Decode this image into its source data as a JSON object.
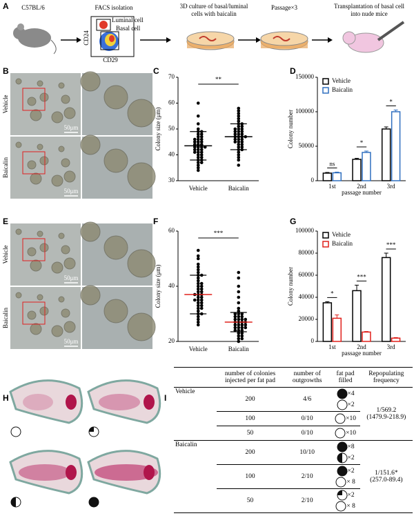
{
  "panel_labels": [
    "A",
    "B",
    "C",
    "D",
    "E",
    "F",
    "G",
    "H",
    "I"
  ],
  "workflow": {
    "mouse": "C57BL/6",
    "facs": "FACS isolation",
    "luminal": "Luminal cell",
    "basal": "Basal cell",
    "axis_y": "CD24",
    "axis_x": "CD29",
    "culture": [
      "3D culture of basal/luminal",
      "cells with baicalin"
    ],
    "passage": "Passage×3",
    "transplant": [
      "Transplantation of basal cell",
      "into nude mice"
    ]
  },
  "micrographs": [
    {
      "rows": [
        "Vehicle",
        "Baicalin"
      ],
      "scale_bars": [
        "50μm",
        "50μm"
      ]
    },
    {
      "rows": [
        "Vehicle",
        "Baicalin"
      ],
      "scale_bars": [
        "50μm",
        "50μm"
      ]
    }
  ],
  "chart_data": [
    {
      "type": "strip",
      "ylabel": "Colony size (μm)",
      "ylim": [
        30,
        70
      ],
      "yticks": [
        30,
        40,
        50,
        60,
        70
      ],
      "significance": "**",
      "point_color": "#000000",
      "mean_color": "#000000",
      "series": [
        {
          "name": "Vehicle",
          "values": [
            60,
            55,
            52,
            50,
            49,
            49,
            48,
            48,
            47,
            47,
            46,
            46,
            45,
            45,
            45,
            44,
            44,
            44,
            43,
            43,
            43,
            42,
            42,
            42,
            41,
            41,
            40,
            40,
            39,
            39,
            38,
            38,
            37,
            37,
            36,
            35,
            34,
            46,
            43,
            41
          ],
          "mean": 43.5,
          "sd": 5.5
        },
        {
          "name": "Baicalin",
          "values": [
            58,
            57,
            56,
            55,
            54,
            53,
            52,
            52,
            51,
            51,
            50,
            50,
            50,
            49,
            49,
            48,
            48,
            48,
            47,
            47,
            47,
            46,
            46,
            46,
            45,
            45,
            44,
            44,
            43,
            43,
            42,
            42,
            41,
            40,
            39,
            38,
            36,
            49,
            47,
            45
          ],
          "mean": 47,
          "sd": 5
        }
      ]
    },
    {
      "type": "bar",
      "ylabel": "Colony number",
      "xlabel": "passage number",
      "categories": [
        "1st",
        "2nd",
        "3rd"
      ],
      "ylim": [
        0,
        150000
      ],
      "yticks": [
        0,
        50000,
        100000,
        150000
      ],
      "legend": "upper left",
      "significance": [
        "ns",
        "*",
        "*"
      ],
      "series": [
        {
          "name": "Vehicle",
          "color": "#000000",
          "values": [
            11000,
            31000,
            75000
          ],
          "errors": [
            1000,
            1500,
            3000
          ]
        },
        {
          "name": "Baicalin",
          "color": "#2f6fbf",
          "values": [
            11500,
            41000,
            100000
          ],
          "errors": [
            1000,
            2000,
            2500
          ]
        }
      ]
    },
    {
      "type": "strip",
      "ylabel": "Colony size (μm)",
      "ylim": [
        20,
        60
      ],
      "yticks": [
        20,
        40,
        60
      ],
      "significance": "***",
      "point_color": "#000000",
      "mean_color": "#e0201b",
      "series": [
        {
          "name": "Vehicle",
          "values": [
            53,
            51,
            50,
            48,
            47,
            46,
            45,
            44,
            43,
            42,
            41,
            41,
            40,
            40,
            39,
            39,
            38,
            38,
            37,
            37,
            36,
            36,
            35,
            35,
            34,
            34,
            33,
            33,
            32,
            32,
            31,
            30,
            30,
            29,
            28,
            27,
            26,
            44,
            37,
            35
          ],
          "mean": 37,
          "sd": 7
        },
        {
          "name": "Baicalin",
          "values": [
            45,
            43,
            40,
            38,
            36,
            34,
            32,
            31,
            30,
            30,
            29,
            29,
            28,
            28,
            28,
            27,
            27,
            27,
            26,
            26,
            26,
            25,
            25,
            25,
            24,
            24,
            23,
            23,
            22,
            22,
            21,
            21,
            20,
            27,
            26,
            25,
            28,
            24,
            29,
            30
          ],
          "mean": 27,
          "sd": 3.5
        }
      ]
    },
    {
      "type": "bar",
      "ylabel": "Colony number",
      "xlabel": "passage number",
      "categories": [
        "1st",
        "2nd",
        "3rd"
      ],
      "ylim": [
        0,
        100000
      ],
      "yticks": [
        0,
        20000,
        40000,
        60000,
        80000,
        100000
      ],
      "legend": "upper left",
      "significance": [
        "*",
        "***",
        "***"
      ],
      "series": [
        {
          "name": "Vehicle",
          "color": "#000000",
          "values": [
            35000,
            46000,
            76000
          ],
          "errors": [
            1000,
            5000,
            4000
          ]
        },
        {
          "name": "Baicalin",
          "color": "#e0201b",
          "values": [
            21000,
            8500,
            3000
          ],
          "errors": [
            3000,
            500,
            500
          ]
        }
      ]
    }
  ],
  "table": {
    "header": [
      "number of colonies injected per fat pad",
      "number of outgrowths",
      "fat pad filled",
      "Repopulating frequency"
    ],
    "groups": [
      {
        "name": "Vehicle",
        "rows": [
          [
            "200",
            "4/6",
            [
              "×4",
              "×2"
            ]
          ],
          [
            "100",
            "0/10",
            [
              "×10"
            ]
          ],
          [
            "50",
            "0/10",
            [
              "×10"
            ]
          ]
        ],
        "frequency": [
          "1/569.2",
          "(1479.9-218.9)"
        ]
      },
      {
        "name": "Baicalin",
        "rows": [
          [
            "200",
            "10/10",
            [
              "×8",
              "×2"
            ]
          ],
          [
            "100",
            "2/10",
            [
              "×2",
              "× 8"
            ]
          ],
          [
            "50",
            "2/10",
            [
              "×2",
              "× 8"
            ]
          ]
        ],
        "frequency": [
          "1/151.6*",
          "(257.0-89.4)"
        ]
      }
    ]
  }
}
